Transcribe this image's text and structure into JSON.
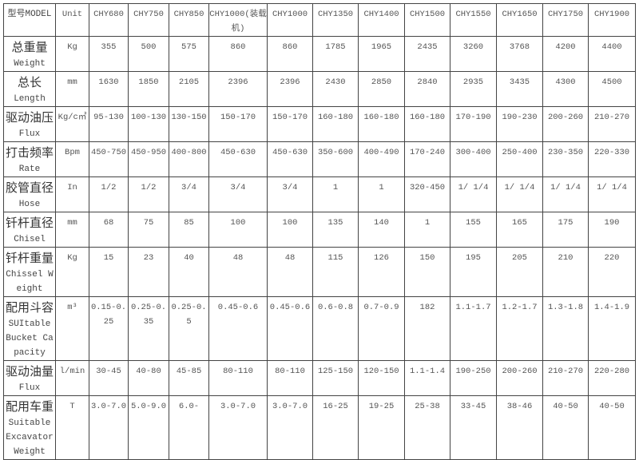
{
  "table": {
    "header": {
      "label": "型号MODEL",
      "unit": "Unit",
      "models": [
        "CHY680",
        "CHY750",
        "CHY850",
        "CHY1000(装载机)",
        "CHY1000",
        "CHY1350",
        "CHY1400",
        "CHY1500",
        "CHY1550",
        "CHY1650",
        "CHY1750",
        "CHY1900"
      ]
    },
    "rows": [
      {
        "cn": "总重量",
        "en": "Weight",
        "unit": "Kg",
        "values": [
          "355",
          "500",
          "575",
          "860",
          "860",
          "1785",
          "1965",
          "2435",
          "3260",
          "3768",
          "4200",
          "4400"
        ]
      },
      {
        "cn": "总长",
        "en": "Length",
        "unit": "mm",
        "values": [
          "1630",
          "1850",
          "2105",
          "2396",
          "2396",
          "2430",
          "2850",
          "2840",
          "2935",
          "3435",
          "4300",
          "4500"
        ]
      },
      {
        "cn": "驱动油压",
        "en": "Flux",
        "unit": "Kg/c㎡",
        "values": [
          "95-130",
          "100-130",
          "130-150",
          "150-170",
          "150-170",
          "160-180",
          "160-180",
          "160-180",
          "170-190",
          "190-230",
          "200-260",
          "210-270"
        ]
      },
      {
        "cn": "打击频率",
        "en": "Rate",
        "unit": "Bpm",
        "values": [
          "450-750",
          "450-950",
          "400-800",
          "450-630",
          "450-630",
          "350-600",
          "400-490",
          "170-240",
          "300-400",
          "250-400",
          "230-350",
          "220-330"
        ]
      },
      {
        "cn": "胶管直径",
        "en": "Hose",
        "unit": "In",
        "values": [
          "1/2",
          "1/2",
          "3/4",
          "3/4",
          "3/4",
          "1",
          "1",
          "320-450",
          "1/ 1/4",
          "1/ 1/4",
          "1/ 1/4",
          "1/ 1/4"
        ]
      },
      {
        "cn": "钎杆直径",
        "en": "Chisel",
        "unit": "mm",
        "values": [
          "68",
          "75",
          "85",
          "100",
          "100",
          "135",
          "140",
          "1",
          "155",
          "165",
          "175",
          "190"
        ]
      },
      {
        "cn": "钎杆重量",
        "en": "Chissel Weight",
        "unit": "Kg",
        "values": [
          "15",
          "23",
          "40",
          "48",
          "48",
          "115",
          "126",
          "150",
          "195",
          "205",
          "210",
          "220"
        ]
      },
      {
        "cn": "配用斗容",
        "en": "SUItable Bucket Capacity",
        "unit": "m³",
        "values": [
          "0.15-0.25",
          "0.25-0.35",
          "0.25-0.5",
          "0.45-0.6",
          "0.45-0.6",
          "0.6-0.8",
          "0.7-0.9",
          "182",
          "1.1-1.7",
          "1.2-1.7",
          "1.3-1.8",
          "1.4-1.9"
        ]
      },
      {
        "cn": "驱动油量",
        "en": "Flux",
        "unit": "l/min",
        "values": [
          "30-45",
          "40-80",
          "45-85",
          "80-110",
          "80-110",
          "125-150",
          "120-150",
          "1.1-1.4",
          "190-250",
          "200-260",
          "210-270",
          "220-280"
        ]
      },
      {
        "cn": "配用车重",
        "en": "Suitable Excavator Weight",
        "unit": "T",
        "values": [
          "3.0-7.0",
          "5.0-9.0",
          "6.0-",
          "3.0-7.0",
          "3.0-7.0",
          "16-25",
          "19-25",
          "25-38",
          "33-45",
          "38-46",
          "40-50",
          "40-50"
        ]
      }
    ]
  }
}
